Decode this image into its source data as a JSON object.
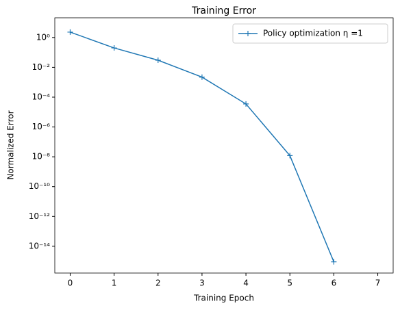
{
  "chart_data": {
    "type": "line",
    "title": "Training Error",
    "xlabel": "Training Epoch",
    "ylabel": "Normalized Error",
    "x": [
      0,
      1,
      2,
      3,
      4,
      5,
      6
    ],
    "series": [
      {
        "name": "Policy optimization η =1",
        "color": "#1f77b4",
        "marker": "+",
        "values": [
          2.3,
          0.2,
          0.03,
          0.0022,
          3.5e-05,
          1.2e-08,
          9e-16
        ]
      }
    ],
    "xlim": [
      -0.35,
      7.35
    ],
    "xticks": [
      0,
      1,
      2,
      3,
      4,
      5,
      6,
      7
    ],
    "ylim": [
      1.6e-16,
      21
    ],
    "yscale": "log",
    "yticks": [
      {
        "value": 1,
        "label": "10⁰"
      },
      {
        "value": 0.01,
        "label": "10⁻²"
      },
      {
        "value": 0.0001,
        "label": "10⁻⁴"
      },
      {
        "value": 1e-06,
        "label": "10⁻⁶"
      },
      {
        "value": 1e-08,
        "label": "10⁻⁸"
      },
      {
        "value": 1e-10,
        "label": "10⁻¹⁰"
      },
      {
        "value": 1e-12,
        "label": "10⁻¹²"
      },
      {
        "value": 1e-14,
        "label": "10⁻¹⁴"
      }
    ],
    "legend": "upper right",
    "grid": false
  }
}
